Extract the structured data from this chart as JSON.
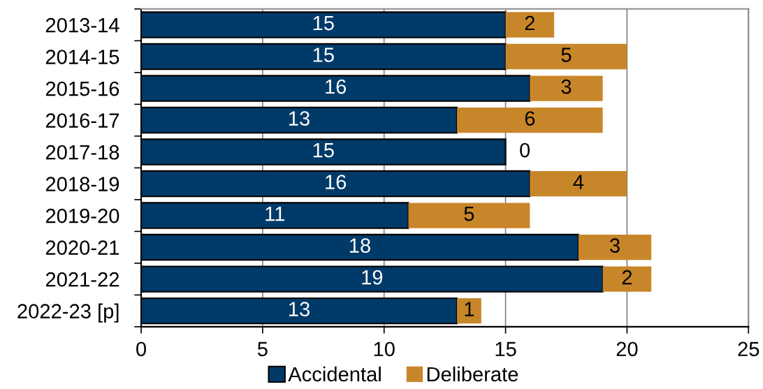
{
  "chart_data": {
    "type": "bar",
    "orientation": "horizontal",
    "stacked": true,
    "categories": [
      "2013-14",
      "2014-15",
      "2015-16",
      "2016-17",
      "2017-18",
      "2018-19",
      "2019-20",
      "2020-21",
      "2021-22",
      "2022-23 [p]"
    ],
    "series": [
      {
        "name": "Accidental",
        "color": "#003a68",
        "values": [
          15,
          15,
          16,
          13,
          15,
          16,
          11,
          18,
          19,
          13
        ]
      },
      {
        "name": "Deliberate",
        "color": "#c8862a",
        "values": [
          2,
          5,
          3,
          6,
          0,
          4,
          5,
          3,
          2,
          1
        ]
      }
    ],
    "xlim": [
      0,
      25
    ],
    "xticks": [
      0,
      5,
      10,
      15,
      20,
      25
    ],
    "grid": "x",
    "legend": "bottom",
    "data_labels": true
  }
}
